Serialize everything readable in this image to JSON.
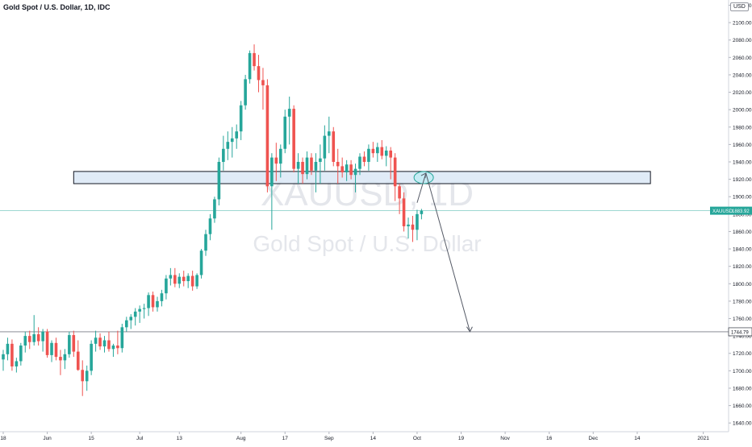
{
  "header": {
    "title": "Gold Spot / U.S. Dollar, 1D, IDC",
    "currency": "USD"
  },
  "watermark": {
    "symbol": "XAUUSD, 1D",
    "description": "Gold Spot / U.S. Dollar"
  },
  "colors": {
    "up": "#26a69a",
    "down": "#ef5350",
    "zone_fill": "#dbe7f6",
    "zone_border": "#131722",
    "last_price_line": "#26a69a",
    "target_line": "#787b86",
    "arrow": "#555a66",
    "ellipse_fill": "#b2ebf2",
    "ellipse_border": "#26a69a"
  },
  "chart_data": {
    "type": "candlestick",
    "title": "Gold Spot / U.S. Dollar, 1D, IDC",
    "y_axis": {
      "ylim": [
        1630,
        2126
      ],
      "ticks": [
        "2120.00",
        "2100.00",
        "2080.00",
        "2060.00",
        "2040.00",
        "2020.00",
        "2000.00",
        "1980.00",
        "1960.00",
        "1940.00",
        "1920.00",
        "1900.00",
        "1880.00",
        "1860.00",
        "1840.00",
        "1820.00",
        "1800.00",
        "1780.00",
        "1760.00",
        "1740.00",
        "1720.00",
        "1700.00",
        "1680.00",
        "1660.00",
        "1640.00"
      ],
      "tick_values": [
        2120,
        2100,
        2080,
        2060,
        2040,
        2020,
        2000,
        1980,
        1960,
        1940,
        1920,
        1900,
        1880,
        1860,
        1840,
        1820,
        1800,
        1780,
        1760,
        1740,
        1720,
        1700,
        1680,
        1660,
        1640
      ]
    },
    "x_axis": {
      "labels": [
        "18",
        "Jun",
        "15",
        "Jul",
        "13",
        "Aug",
        "17",
        "Sep",
        "14",
        "Oct",
        "19",
        "Nov",
        "16",
        "Dec",
        "14",
        "2021"
      ],
      "label_bars": [
        0,
        10,
        20,
        31,
        40,
        54,
        64,
        74,
        84,
        94,
        104,
        114,
        124,
        134,
        144,
        159
      ],
      "total_bars": 163
    },
    "last_price": {
      "label": "XAUUSD",
      "value": 1883.92,
      "text": "1883.92"
    },
    "target_price": {
      "value": 1744.79,
      "text": "1744.79"
    },
    "zone": {
      "bar_start": 16,
      "bar_end": 147,
      "low": 1915,
      "high": 1929
    },
    "projection": {
      "ellipse": {
        "bar": 95.5,
        "price": 1922
      },
      "peak": {
        "bar": 96,
        "price": 1927
      },
      "end": {
        "bar": 106,
        "price": 1745
      },
      "start": {
        "bar": 94,
        "price": 1893
      }
    },
    "candles": [
      {
        "o": 1713,
        "h": 1724,
        "l": 1700,
        "c": 1719
      },
      {
        "o": 1719,
        "h": 1738,
        "l": 1712,
        "c": 1731
      },
      {
        "o": 1731,
        "h": 1736,
        "l": 1700,
        "c": 1705
      },
      {
        "o": 1705,
        "h": 1715,
        "l": 1698,
        "c": 1711
      },
      {
        "o": 1711,
        "h": 1732,
        "l": 1706,
        "c": 1729
      },
      {
        "o": 1729,
        "h": 1745,
        "l": 1721,
        "c": 1740
      },
      {
        "o": 1740,
        "h": 1746,
        "l": 1725,
        "c": 1733
      },
      {
        "o": 1733,
        "h": 1764,
        "l": 1729,
        "c": 1742
      },
      {
        "o": 1742,
        "h": 1750,
        "l": 1729,
        "c": 1734
      },
      {
        "o": 1734,
        "h": 1748,
        "l": 1722,
        "c": 1745
      },
      {
        "o": 1745,
        "h": 1748,
        "l": 1715,
        "c": 1718
      },
      {
        "o": 1718,
        "h": 1735,
        "l": 1710,
        "c": 1732
      },
      {
        "o": 1732,
        "h": 1738,
        "l": 1712,
        "c": 1716
      },
      {
        "o": 1716,
        "h": 1724,
        "l": 1695,
        "c": 1712
      },
      {
        "o": 1712,
        "h": 1725,
        "l": 1702,
        "c": 1719
      },
      {
        "o": 1719,
        "h": 1745,
        "l": 1715,
        "c": 1741
      },
      {
        "o": 1741,
        "h": 1746,
        "l": 1716,
        "c": 1722
      },
      {
        "o": 1722,
        "h": 1735,
        "l": 1700,
        "c": 1701
      },
      {
        "o": 1701,
        "h": 1712,
        "l": 1671,
        "c": 1688
      },
      {
        "o": 1688,
        "h": 1706,
        "l": 1677,
        "c": 1700
      },
      {
        "o": 1700,
        "h": 1735,
        "l": 1695,
        "c": 1731
      },
      {
        "o": 1731,
        "h": 1746,
        "l": 1722,
        "c": 1738
      },
      {
        "o": 1738,
        "h": 1743,
        "l": 1724,
        "c": 1728
      },
      {
        "o": 1728,
        "h": 1740,
        "l": 1721,
        "c": 1735
      },
      {
        "o": 1735,
        "h": 1745,
        "l": 1722,
        "c": 1725
      },
      {
        "o": 1725,
        "h": 1731,
        "l": 1716,
        "c": 1729
      },
      {
        "o": 1729,
        "h": 1746,
        "l": 1719,
        "c": 1726
      },
      {
        "o": 1726,
        "h": 1754,
        "l": 1721,
        "c": 1750
      },
      {
        "o": 1750,
        "h": 1762,
        "l": 1745,
        "c": 1758
      },
      {
        "o": 1758,
        "h": 1765,
        "l": 1748,
        "c": 1762
      },
      {
        "o": 1762,
        "h": 1772,
        "l": 1752,
        "c": 1768
      },
      {
        "o": 1768,
        "h": 1775,
        "l": 1755,
        "c": 1771
      },
      {
        "o": 1771,
        "h": 1777,
        "l": 1760,
        "c": 1772
      },
      {
        "o": 1772,
        "h": 1790,
        "l": 1763,
        "c": 1787
      },
      {
        "o": 1787,
        "h": 1791,
        "l": 1768,
        "c": 1773
      },
      {
        "o": 1773,
        "h": 1785,
        "l": 1768,
        "c": 1780
      },
      {
        "o": 1780,
        "h": 1793,
        "l": 1774,
        "c": 1789
      },
      {
        "o": 1789,
        "h": 1810,
        "l": 1782,
        "c": 1806
      },
      {
        "o": 1806,
        "h": 1818,
        "l": 1798,
        "c": 1810
      },
      {
        "o": 1810,
        "h": 1818,
        "l": 1796,
        "c": 1800
      },
      {
        "o": 1800,
        "h": 1812,
        "l": 1795,
        "c": 1808
      },
      {
        "o": 1808,
        "h": 1815,
        "l": 1797,
        "c": 1803
      },
      {
        "o": 1803,
        "h": 1812,
        "l": 1795,
        "c": 1809
      },
      {
        "o": 1809,
        "h": 1815,
        "l": 1792,
        "c": 1797
      },
      {
        "o": 1797,
        "h": 1812,
        "l": 1794,
        "c": 1810
      },
      {
        "o": 1810,
        "h": 1840,
        "l": 1806,
        "c": 1838
      },
      {
        "o": 1838,
        "h": 1862,
        "l": 1832,
        "c": 1857
      },
      {
        "o": 1857,
        "h": 1880,
        "l": 1850,
        "c": 1875
      },
      {
        "o": 1875,
        "h": 1900,
        "l": 1870,
        "c": 1897
      },
      {
        "o": 1897,
        "h": 1945,
        "l": 1890,
        "c": 1940
      },
      {
        "o": 1940,
        "h": 1970,
        "l": 1930,
        "c": 1955
      },
      {
        "o": 1955,
        "h": 1975,
        "l": 1942,
        "c": 1963
      },
      {
        "o": 1963,
        "h": 1980,
        "l": 1945,
        "c": 1967
      },
      {
        "o": 1967,
        "h": 1983,
        "l": 1955,
        "c": 1975
      },
      {
        "o": 1975,
        "h": 2010,
        "l": 1965,
        "c": 2005
      },
      {
        "o": 2005,
        "h": 2040,
        "l": 2000,
        "c": 2035
      },
      {
        "o": 2035,
        "h": 2068,
        "l": 2030,
        "c": 2065
      },
      {
        "o": 2065,
        "h": 2075,
        "l": 2045,
        "c": 2050
      },
      {
        "o": 2050,
        "h": 2063,
        "l": 2020,
        "c": 2034
      },
      {
        "o": 2034,
        "h": 2048,
        "l": 2000,
        "c": 2028
      },
      {
        "o": 2028,
        "h": 2035,
        "l": 1905,
        "c": 1912
      },
      {
        "o": 1912,
        "h": 1950,
        "l": 1862,
        "c": 1945
      },
      {
        "o": 1945,
        "h": 1962,
        "l": 1918,
        "c": 1938
      },
      {
        "o": 1938,
        "h": 1960,
        "l": 1922,
        "c": 1955
      },
      {
        "o": 1955,
        "h": 2000,
        "l": 1950,
        "c": 1992
      },
      {
        "o": 1992,
        "h": 2015,
        "l": 1960,
        "c": 2001
      },
      {
        "o": 2001,
        "h": 2005,
        "l": 1928,
        "c": 1932
      },
      {
        "o": 1932,
        "h": 1950,
        "l": 1915,
        "c": 1940
      },
      {
        "o": 1940,
        "h": 1945,
        "l": 1915,
        "c": 1926
      },
      {
        "o": 1926,
        "h": 1952,
        "l": 1920,
        "c": 1945
      },
      {
        "o": 1945,
        "h": 1950,
        "l": 1925,
        "c": 1930
      },
      {
        "o": 1930,
        "h": 1950,
        "l": 1905,
        "c": 1940
      },
      {
        "o": 1940,
        "h": 1960,
        "l": 1915,
        "c": 1944
      },
      {
        "o": 1944,
        "h": 1982,
        "l": 1930,
        "c": 1970
      },
      {
        "o": 1970,
        "h": 1992,
        "l": 1950,
        "c": 1975
      },
      {
        "o": 1975,
        "h": 1980,
        "l": 1935,
        "c": 1940
      },
      {
        "o": 1940,
        "h": 1955,
        "l": 1915,
        "c": 1935
      },
      {
        "o": 1935,
        "h": 1945,
        "l": 1922,
        "c": 1928
      },
      {
        "o": 1928,
        "h": 1942,
        "l": 1918,
        "c": 1937
      },
      {
        "o": 1937,
        "h": 1942,
        "l": 1920,
        "c": 1925
      },
      {
        "o": 1925,
        "h": 1938,
        "l": 1905,
        "c": 1932
      },
      {
        "o": 1932,
        "h": 1950,
        "l": 1925,
        "c": 1946
      },
      {
        "o": 1946,
        "h": 1952,
        "l": 1935,
        "c": 1940
      },
      {
        "o": 1940,
        "h": 1960,
        "l": 1930,
        "c": 1955
      },
      {
        "o": 1955,
        "h": 1963,
        "l": 1945,
        "c": 1950
      },
      {
        "o": 1950,
        "h": 1962,
        "l": 1940,
        "c": 1957
      },
      {
        "o": 1957,
        "h": 1965,
        "l": 1943,
        "c": 1947
      },
      {
        "o": 1947,
        "h": 1958,
        "l": 1935,
        "c": 1953
      },
      {
        "o": 1953,
        "h": 1957,
        "l": 1920,
        "c": 1945
      },
      {
        "o": 1945,
        "h": 1950,
        "l": 1895,
        "c": 1912
      },
      {
        "o": 1912,
        "h": 1915,
        "l": 1880,
        "c": 1898
      },
      {
        "o": 1898,
        "h": 1905,
        "l": 1860,
        "c": 1866
      },
      {
        "o": 1866,
        "h": 1876,
        "l": 1852,
        "c": 1868
      },
      {
        "o": 1868,
        "h": 1878,
        "l": 1848,
        "c": 1862
      },
      {
        "o": 1862,
        "h": 1885,
        "l": 1850,
        "c": 1880
      },
      {
        "o": 1880,
        "h": 1886,
        "l": 1874,
        "c": 1884
      }
    ]
  }
}
